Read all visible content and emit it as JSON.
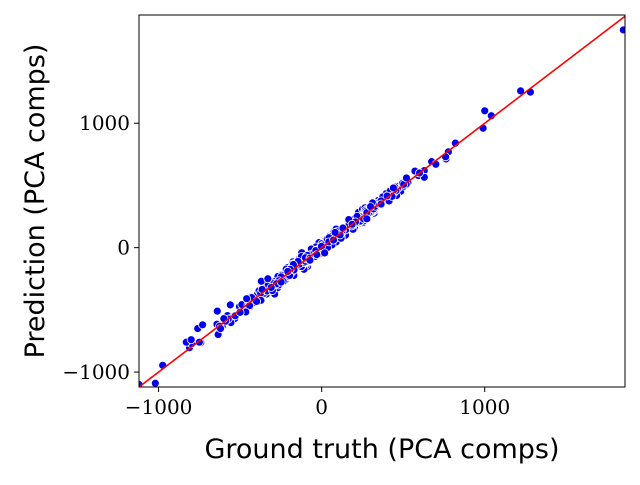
{
  "chart_data": {
    "type": "scatter",
    "title": "",
    "xlabel": "Ground truth (PCA comps)",
    "ylabel": "Prediction (PCA comps)",
    "xlim": [
      -1120,
      1860
    ],
    "ylim": [
      -1120,
      1870
    ],
    "xticks": [
      -1000,
      0,
      1000
    ],
    "yticks": [
      -1000,
      0,
      1000
    ],
    "xtick_labels": [
      "−1000",
      "0",
      "1000"
    ],
    "ytick_labels": [
      "−1000",
      "0",
      "1000"
    ],
    "grid": false,
    "legend": false,
    "point_color": "#0000ee",
    "point_edge_color": "#ffffff",
    "reference_line": {
      "type": "y=x",
      "color": "#ff0000"
    },
    "outlier_points": [
      {
        "x": -1020,
        "y": -1090
      },
      {
        "x": -1120,
        "y": -1100
      },
      {
        "x": -830,
        "y": -760
      },
      {
        "x": -800,
        "y": -740
      },
      {
        "x": -760,
        "y": -650
      },
      {
        "x": -750,
        "y": -760
      },
      {
        "x": -730,
        "y": -620
      },
      {
        "x": -640,
        "y": -510
      },
      {
        "x": -620,
        "y": -650
      },
      {
        "x": -600,
        "y": -570
      },
      {
        "x": -560,
        "y": -460
      },
      {
        "x": -500,
        "y": -520
      },
      {
        "x": -460,
        "y": -410
      },
      {
        "x": -370,
        "y": -270
      },
      {
        "x": -330,
        "y": -250
      },
      {
        "x": 300,
        "y": 330
      },
      {
        "x": 440,
        "y": 480
      },
      {
        "x": 520,
        "y": 560
      },
      {
        "x": 600,
        "y": 600
      },
      {
        "x": 700,
        "y": 670
      },
      {
        "x": 760,
        "y": 730
      },
      {
        "x": 820,
        "y": 840
      },
      {
        "x": 990,
        "y": 960
      },
      {
        "x": 1000,
        "y": 1100
      },
      {
        "x": 1040,
        "y": 1060
      },
      {
        "x": 1220,
        "y": 1260
      },
      {
        "x": 1280,
        "y": 1250
      },
      {
        "x": 1850,
        "y": 1750
      }
    ],
    "dense_band": {
      "x_range": [
        -1000,
        860
      ],
      "count": 520,
      "noise_scale": 25,
      "concentration": 280
    }
  }
}
